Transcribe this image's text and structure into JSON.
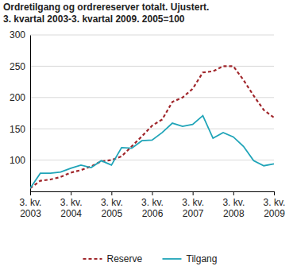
{
  "chart_data": {
    "type": "line",
    "title": "Ordretilgang og ordrereserver totalt. Ujustert.",
    "subtitle": "3. kvartal 2003-3. kvartal 2009. 2005=100",
    "categories": [
      "3. kv. 2003",
      null,
      null,
      null,
      "3. kv. 2004",
      null,
      null,
      null,
      "3. kv. 2005",
      null,
      null,
      null,
      "3. kv. 2006",
      null,
      null,
      null,
      "3. kv. 2007",
      null,
      null,
      null,
      "3. kv. 2008",
      null,
      null,
      null,
      "3. kv. 2009"
    ],
    "series": [
      {
        "name": "Reserve",
        "color": "#a0262b",
        "line_style": "dashed",
        "values": [
          55,
          67,
          69,
          73,
          80,
          84,
          90,
          98,
          100,
          106,
          122,
          138,
          155,
          165,
          193,
          200,
          214,
          240,
          242,
          250,
          250,
          228,
          203,
          180,
          168
        ]
      },
      {
        "name": "Tilgang",
        "color": "#1fa4b8",
        "line_style": "solid",
        "values": [
          55,
          79,
          79,
          81,
          87,
          92,
          88,
          99,
          92,
          120,
          119,
          131,
          132,
          144,
          159,
          154,
          157,
          171,
          135,
          144,
          137,
          122,
          99,
          91,
          94
        ]
      }
    ],
    "ylim": [
      50,
      300
    ],
    "yticks": [
      100,
      150,
      200,
      250,
      300
    ],
    "grid": true,
    "legend": "bottom"
  }
}
